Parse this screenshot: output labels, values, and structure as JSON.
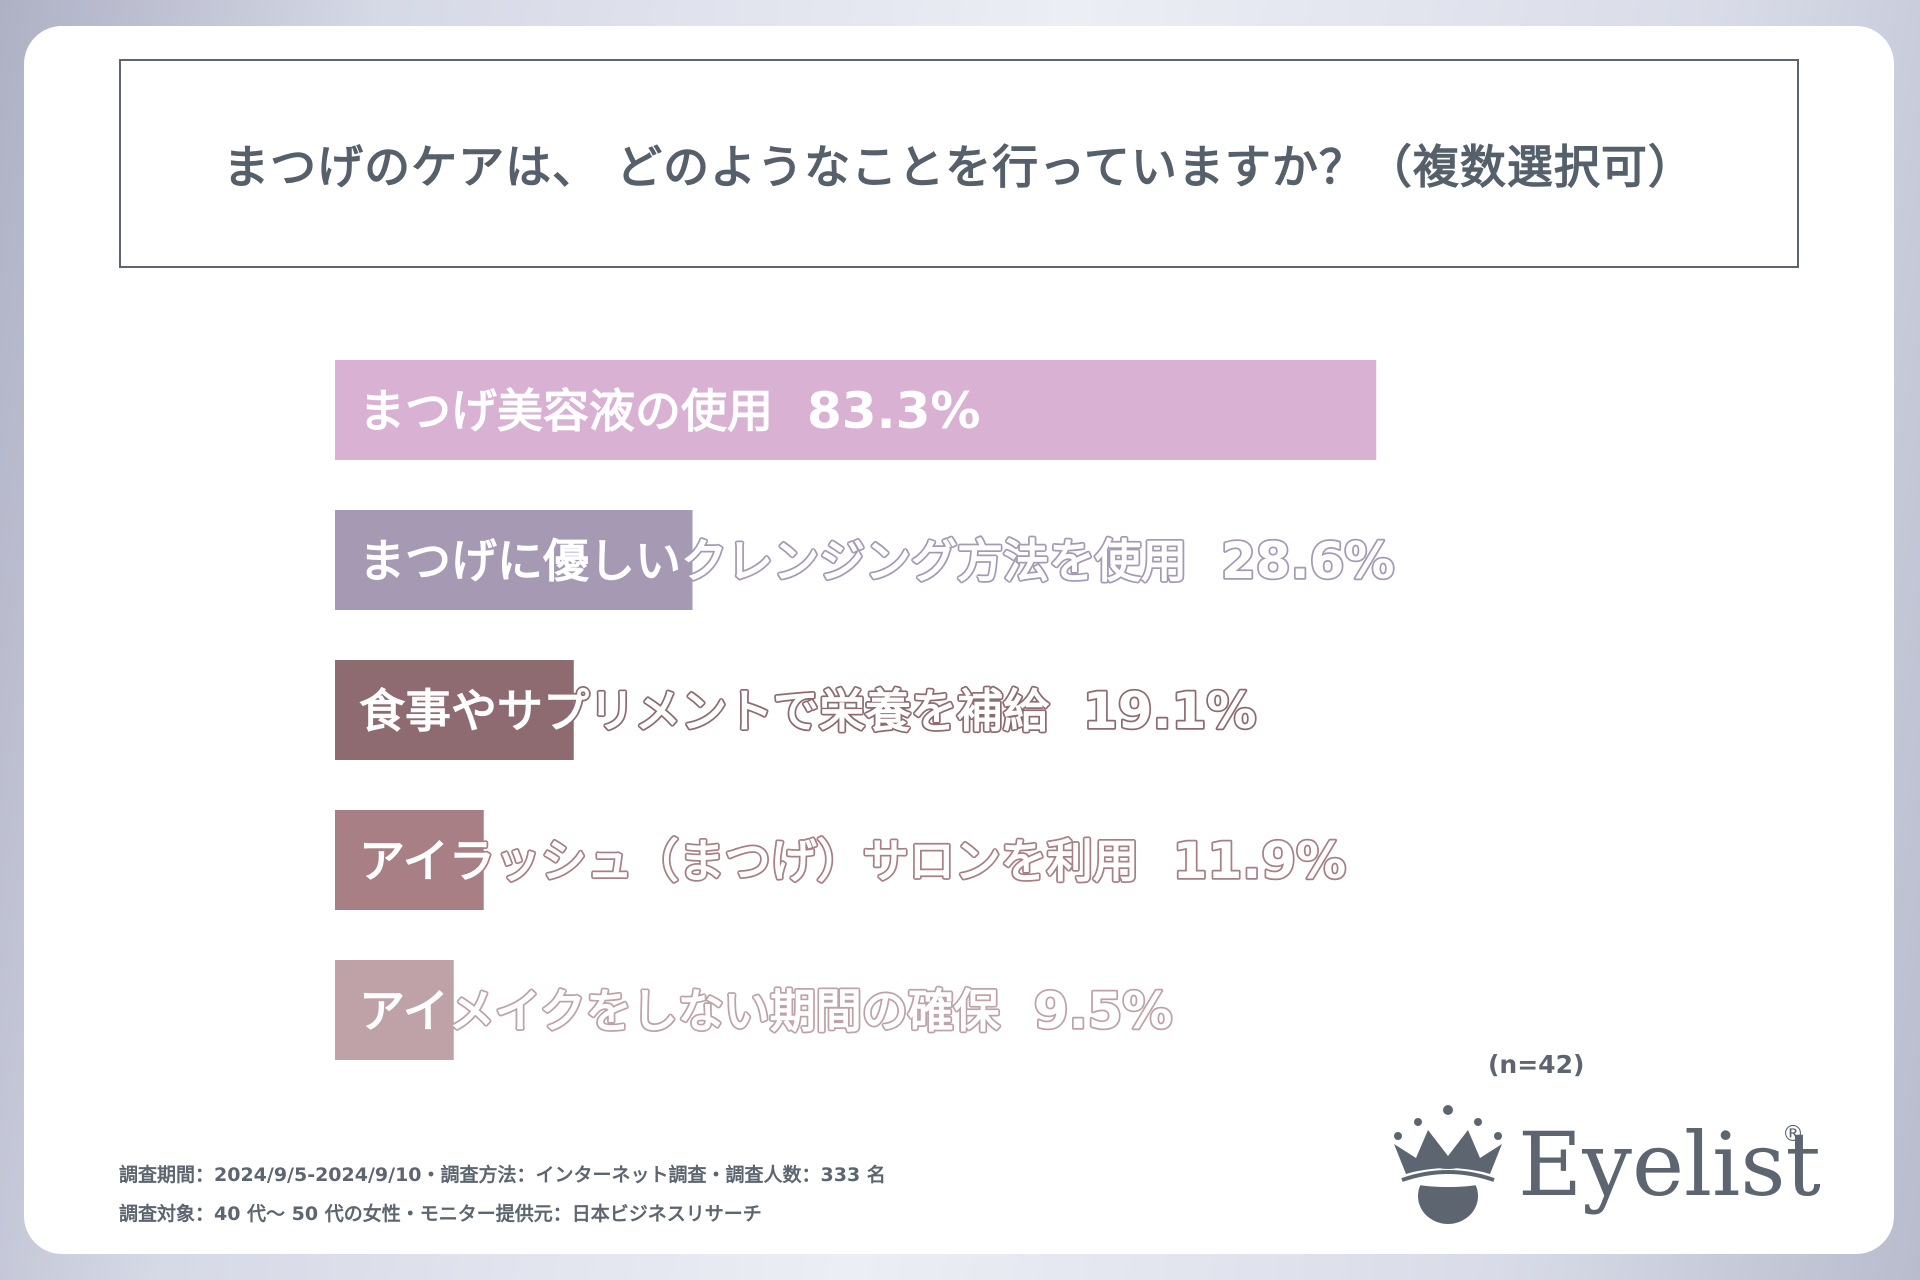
{
  "title": "まつげのケアは、 どのようなことを行っていますか？（複数選択可）",
  "n_label": "(n=42)",
  "footer": {
    "line1": "調査期間：2024/9/5-2024/9/10・調査方法：インターネット調査・調査人数：333 名",
    "line2": "調査対象：40 代〜 50 代の女性・モニター提供元：日本ビジネスリサーチ"
  },
  "logo": {
    "text": "Eyelist",
    "reg": "®"
  },
  "colors": {
    "title_text": "#56606b",
    "title_border": "#5d6670",
    "footer_text": "#5d6670"
  },
  "chart_data": {
    "type": "bar",
    "orientation": "horizontal",
    "title": "まつげのケアは、 どのようなことを行っていますか？（複数選択可）",
    "categories": [
      "まつげ美容液の使用",
      "まつげに優しいクレンジング方法を使用",
      "食事やサプリメントで栄養を補給",
      "アイラッシュ（まつげ）サロンを利用",
      "アイメイクをしない期間の確保"
    ],
    "values": [
      83.3,
      28.6,
      19.1,
      11.9,
      9.5
    ],
    "value_labels": [
      "83.3%",
      "28.6%",
      "19.1%",
      "11.9%",
      "9.5%"
    ],
    "unit": "%",
    "xlim": [
      0,
      100
    ],
    "colors": [
      "#d9b1d3",
      "#a599b4",
      "#8e6b70",
      "#a77f84",
      "#bea2a8"
    ],
    "grid": false,
    "legend": "none"
  }
}
